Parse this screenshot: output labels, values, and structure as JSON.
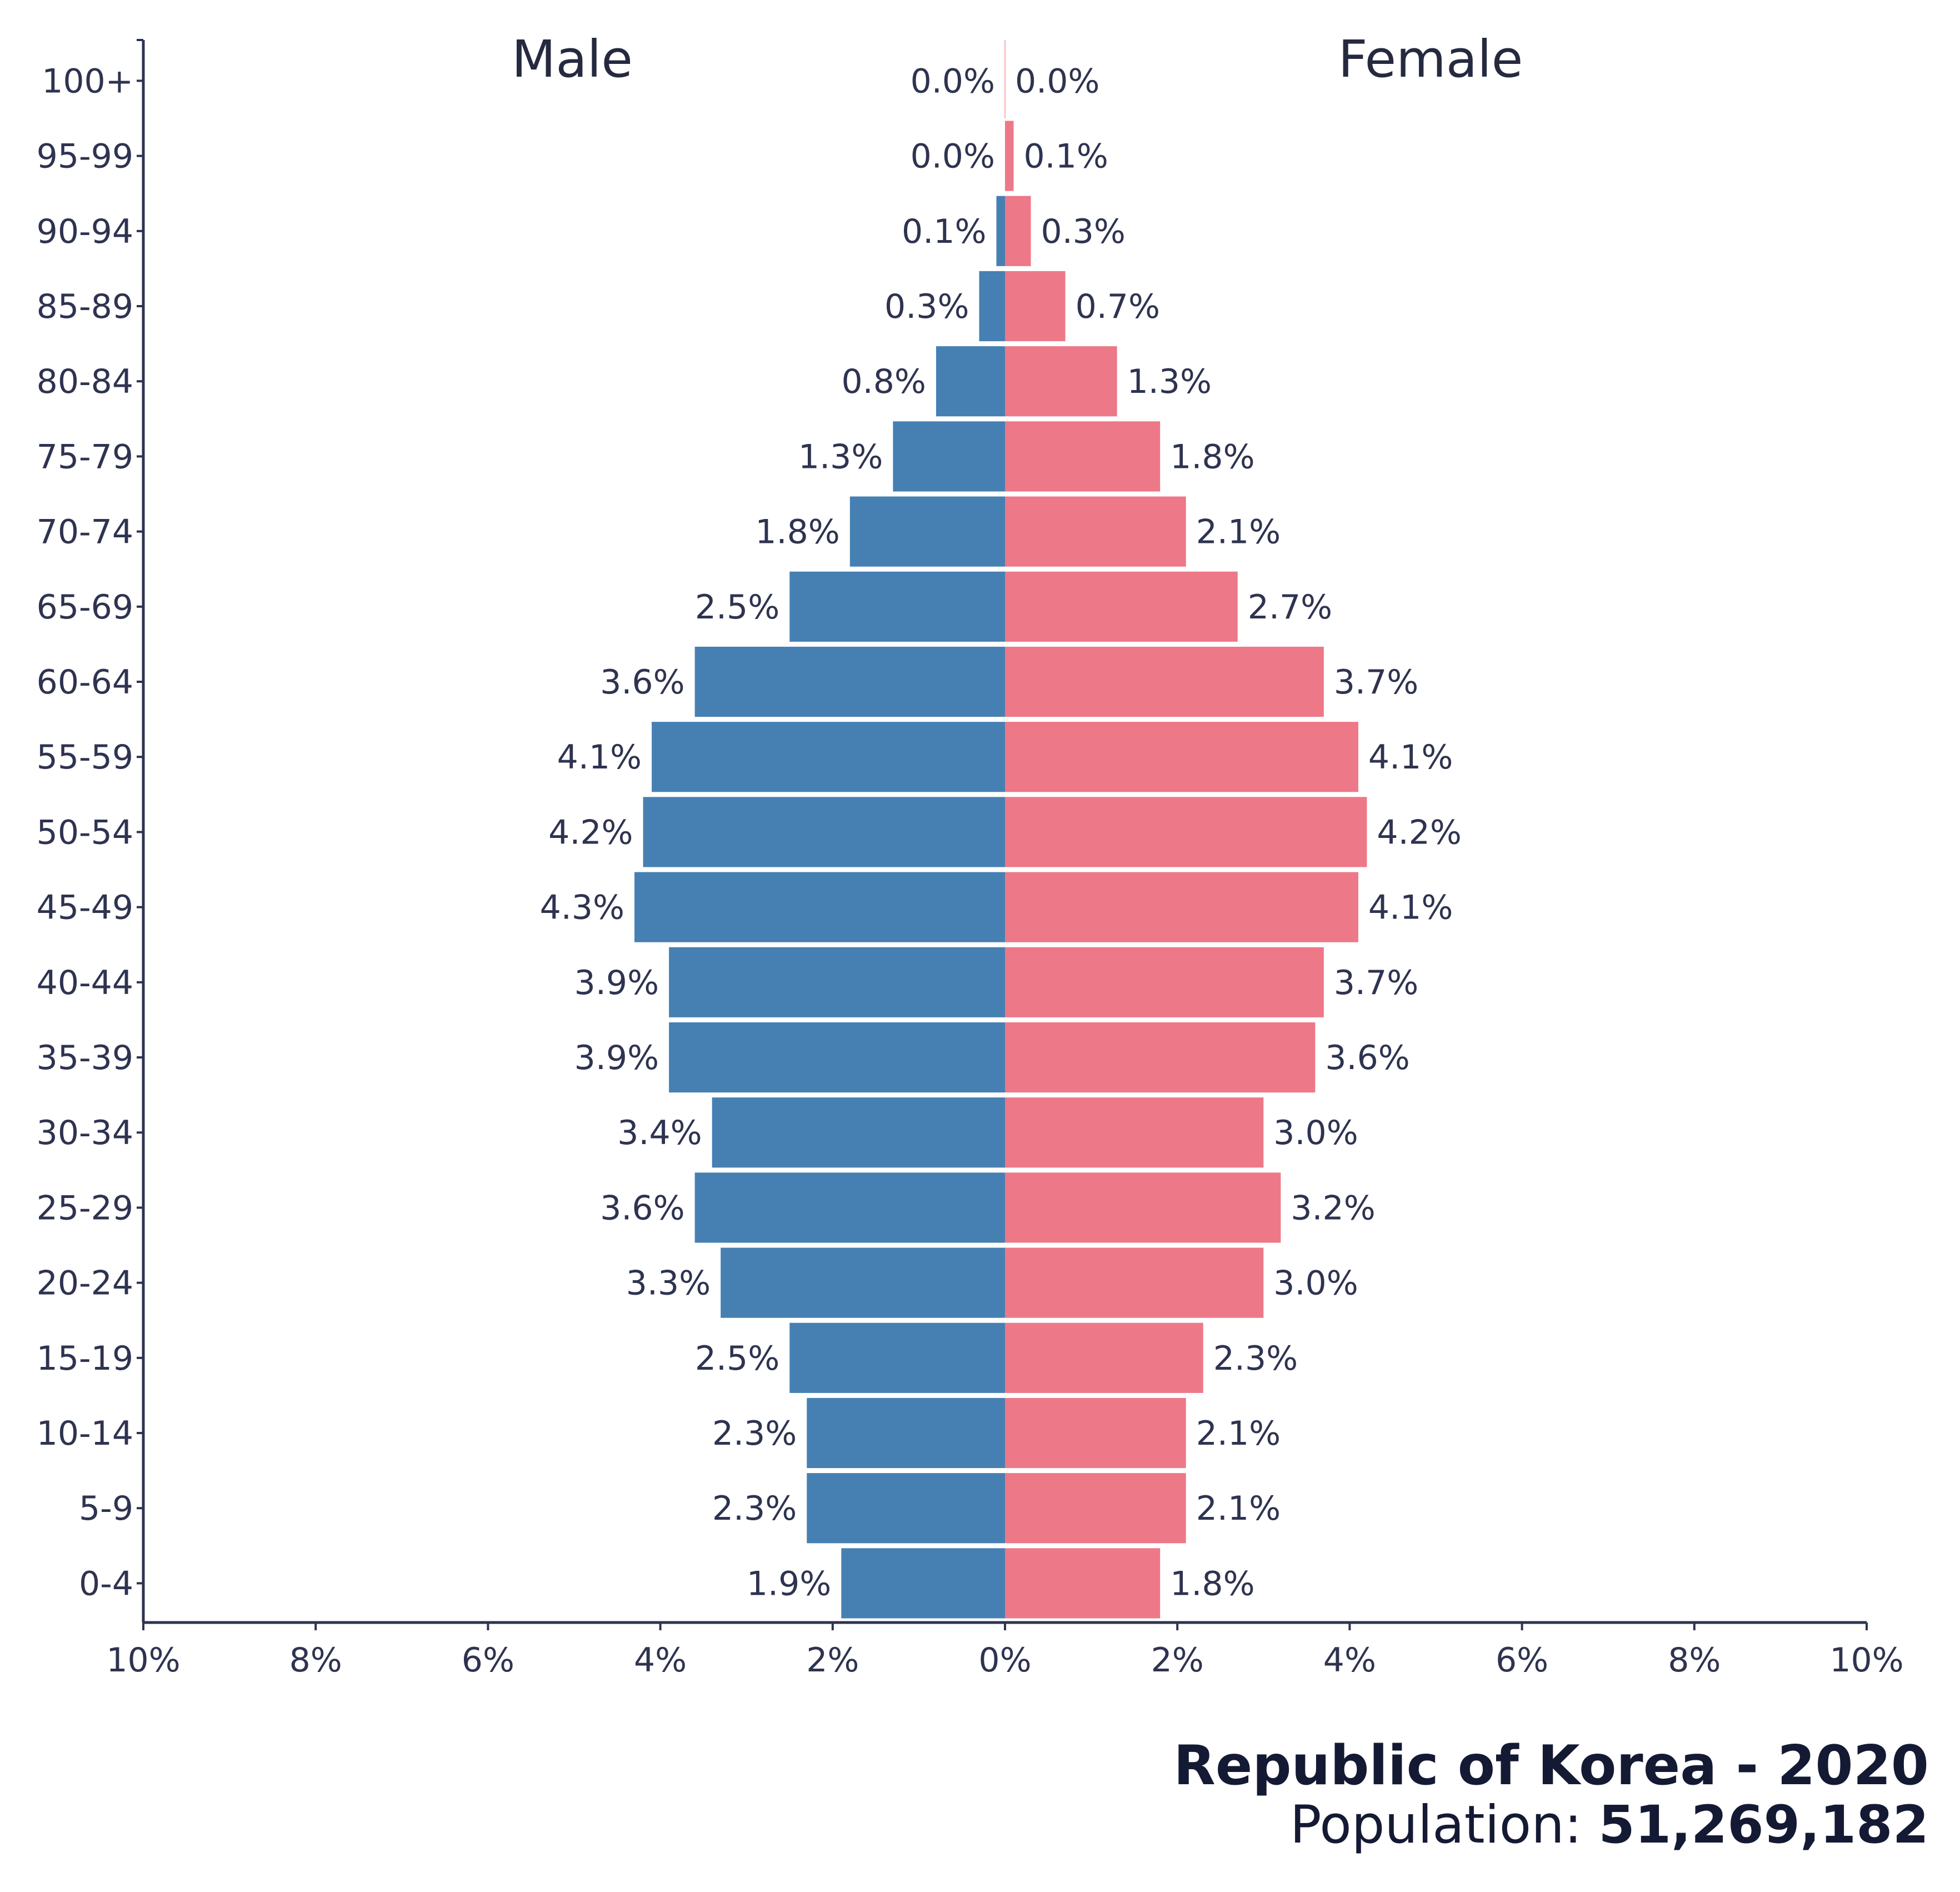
{
  "chart_data": {
    "type": "bar",
    "orientation": "horizontal-diverging",
    "categories": [
      "0-4",
      "5-9",
      "10-14",
      "15-19",
      "20-24",
      "25-29",
      "30-34",
      "35-39",
      "40-44",
      "45-49",
      "50-54",
      "55-59",
      "60-64",
      "65-69",
      "70-74",
      "75-79",
      "80-84",
      "85-89",
      "90-94",
      "95-99",
      "100+"
    ],
    "series": [
      {
        "name": "Male",
        "color": "#4680b3",
        "values": [
          1.9,
          2.3,
          2.3,
          2.5,
          3.3,
          3.6,
          3.4,
          3.9,
          3.9,
          4.3,
          4.2,
          4.1,
          3.6,
          2.5,
          1.8,
          1.3,
          0.8,
          0.3,
          0.1,
          0.0,
          0.0
        ],
        "labels": [
          "1.9%",
          "2.3%",
          "2.3%",
          "2.5%",
          "3.3%",
          "3.6%",
          "3.4%",
          "3.9%",
          "3.9%",
          "4.3%",
          "4.2%",
          "4.1%",
          "3.6%",
          "2.5%",
          "1.8%",
          "1.3%",
          "0.8%",
          "0.3%",
          "0.1%",
          "0.0%",
          "0.0%"
        ]
      },
      {
        "name": "Female",
        "color": "#ed7888",
        "values": [
          1.8,
          2.1,
          2.1,
          2.3,
          3.0,
          3.2,
          3.0,
          3.6,
          3.7,
          4.1,
          4.2,
          4.1,
          3.7,
          2.7,
          2.1,
          1.8,
          1.3,
          0.7,
          0.3,
          0.1,
          0.0
        ],
        "labels": [
          "1.8%",
          "2.1%",
          "2.1%",
          "2.3%",
          "3.0%",
          "3.2%",
          "3.0%",
          "3.6%",
          "3.7%",
          "4.1%",
          "4.2%",
          "4.1%",
          "3.7%",
          "2.7%",
          "2.1%",
          "1.8%",
          "1.3%",
          "0.7%",
          "0.3%",
          "0.1%",
          "0.0%"
        ]
      }
    ],
    "x_ticks": [
      "10%",
      "8%",
      "6%",
      "4%",
      "2%",
      "0%",
      "2%",
      "4%",
      "6%",
      "8%",
      "10%"
    ],
    "xlim": [
      -10,
      10
    ],
    "headers": {
      "left": "Male",
      "right": "Female"
    },
    "grid": false
  },
  "footer": {
    "title": "Republic of Korea - 2020",
    "population_label": "Population: ",
    "population_value": "51,269,182"
  }
}
